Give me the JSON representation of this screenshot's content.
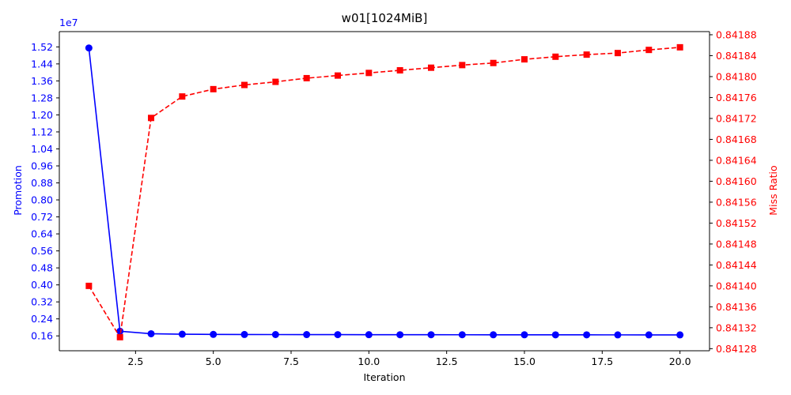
{
  "chart_data": {
    "type": "line",
    "title": "w01[1024MiB]",
    "xlabel": "Iteration",
    "xlim": [
      0.05,
      20.95
    ],
    "x_ticks": [
      2.5,
      5.0,
      7.5,
      10.0,
      12.5,
      15.0,
      17.5,
      20.0
    ],
    "x_tick_labels": [
      "2.5",
      "5.0",
      "7.5",
      "10.0",
      "12.5",
      "15.0",
      "17.5",
      "20.0"
    ],
    "x": [
      1,
      2,
      3,
      4,
      5,
      6,
      7,
      8,
      9,
      10,
      11,
      12,
      13,
      14,
      15,
      16,
      17,
      18,
      19,
      20
    ],
    "left_axis": {
      "label": "Promotion",
      "color": "#0000ff",
      "offset_text": "1e7",
      "lim": [
        0.9,
        15.92
      ],
      "ticks": [
        1.6,
        2.4,
        3.2,
        4.0,
        4.8,
        5.6,
        6.4,
        7.2,
        8.0,
        8.8,
        9.6,
        10.4,
        11.2,
        12.0,
        12.8,
        13.6,
        14.4,
        15.2
      ],
      "tick_labels": [
        "0.16",
        "0.24",
        "0.32",
        "0.40",
        "0.48",
        "0.56",
        "0.64",
        "0.72",
        "0.80",
        "0.88",
        "0.96",
        "1.04",
        "1.12",
        "1.20",
        "1.28",
        "1.36",
        "1.44",
        "1.52"
      ]
    },
    "right_axis": {
      "label": "Miss Ratio",
      "color": "#ff0000",
      "lim": [
        0.841276,
        0.841886
      ],
      "ticks": [
        0.84128,
        0.84132,
        0.84136,
        0.8414,
        0.84144,
        0.84148,
        0.84152,
        0.84156,
        0.8416,
        0.84164,
        0.84168,
        0.84172,
        0.84176,
        0.8418,
        0.84184,
        0.84188
      ],
      "tick_labels": [
        "0.84128",
        "0.84132",
        "0.84136",
        "0.84140",
        "0.84144",
        "0.84148",
        "0.84152",
        "0.84156",
        "0.84160",
        "0.84164",
        "0.84168",
        "0.84172",
        "0.84176",
        "0.84180",
        "0.84184",
        "0.84188"
      ]
    },
    "series": [
      {
        "axis": "left",
        "color": "#0000ff",
        "marker": "circle",
        "line_style": "solid",
        "values": [
          15.15,
          1.82,
          1.7,
          1.68,
          1.67,
          1.665,
          1.662,
          1.66,
          1.658,
          1.656,
          1.655,
          1.654,
          1.653,
          1.652,
          1.651,
          1.65,
          1.649,
          1.648,
          1.647,
          1.646
        ]
      },
      {
        "axis": "right",
        "color": "#ff0000",
        "marker": "square",
        "line_style": "dashed",
        "values": [
          0.8414,
          0.841302,
          0.841721,
          0.841762,
          0.841776,
          0.841784,
          0.84179,
          0.841797,
          0.841802,
          0.841807,
          0.841812,
          0.841817,
          0.841822,
          0.841826,
          0.841833,
          0.841838,
          0.841842,
          0.841845,
          0.841851,
          0.841856
        ]
      }
    ]
  }
}
